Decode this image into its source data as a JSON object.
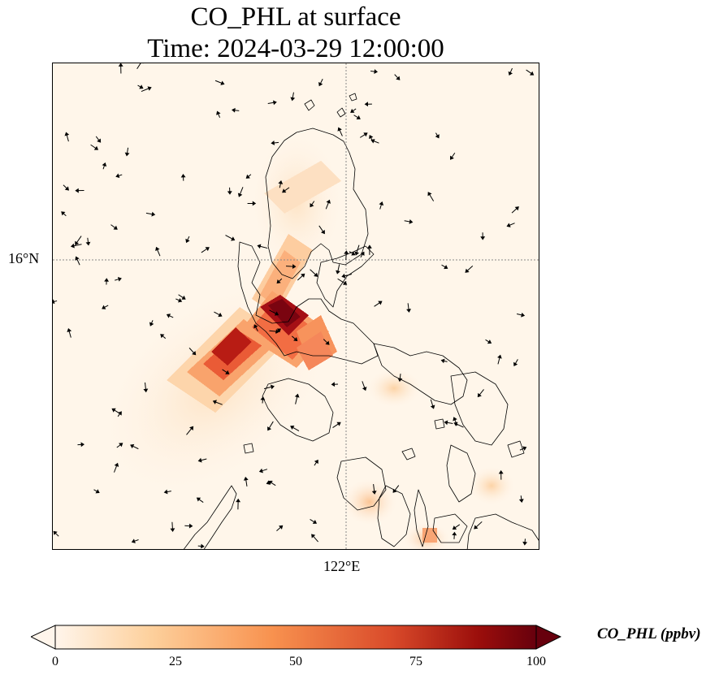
{
  "title": {
    "line1": "CO_PHL at surface",
    "line2": "Time: 2024-03-29 12:00:00"
  },
  "axes": {
    "lat_label": "16°N",
    "lon_label": "122°E"
  },
  "colorbar": {
    "label": "CO_PHL (ppbv)",
    "ticks": [
      "0",
      "25",
      "50",
      "75",
      "100"
    ],
    "min": 0,
    "max": 100,
    "colors": [
      "#fff5eb",
      "#fdd09c",
      "#f8924f",
      "#d94a2a",
      "#9b0e0b",
      "#67000d"
    ]
  },
  "colors": {
    "background_low": "#fff5eb",
    "coastline": "#000000",
    "gridline": "#888888"
  }
}
